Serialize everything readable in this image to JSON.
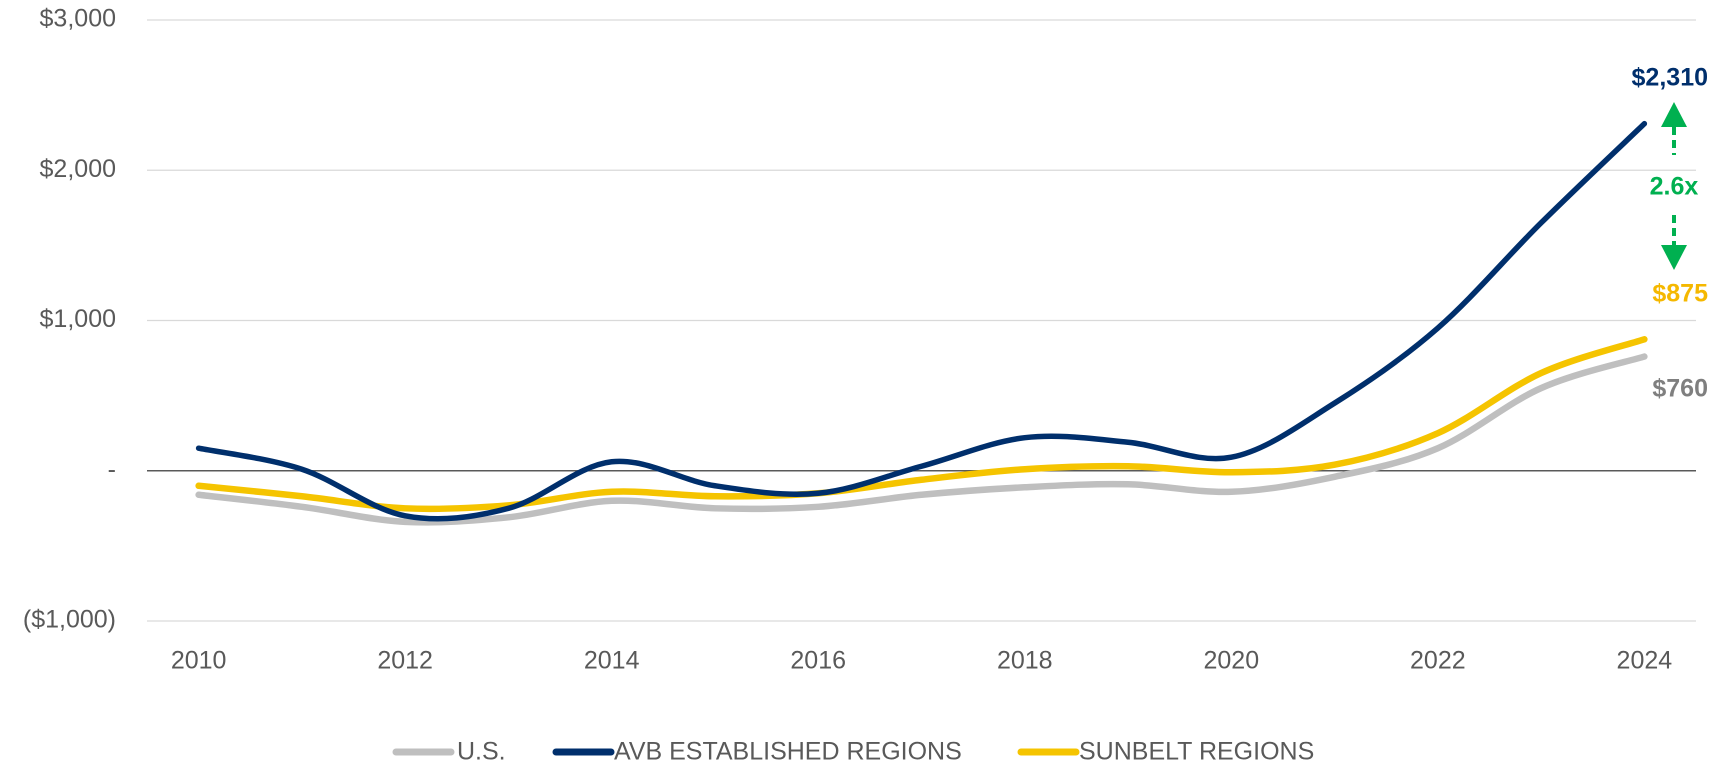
{
  "chart_data": {
    "type": "line",
    "x": [
      2010,
      2011,
      2012,
      2013,
      2014,
      2015,
      2016,
      2017,
      2018,
      2019,
      2020,
      2021,
      2022,
      2023,
      2024
    ],
    "xlim": [
      2009.5,
      2024.5
    ],
    "xticks": [
      2010,
      2012,
      2014,
      2016,
      2018,
      2020,
      2022,
      2024
    ],
    "ylim": [
      -1000,
      3000
    ],
    "yticks": [
      {
        "value": -1000,
        "label": "($1,000)"
      },
      {
        "value": 0,
        "label": "-"
      },
      {
        "value": 1000,
        "label": "$1,000"
      },
      {
        "value": 2000,
        "label": "$2,000"
      },
      {
        "value": 3000,
        "label": "$3,000"
      }
    ],
    "grid": true,
    "legend": "bottom",
    "series": [
      {
        "name": "U.S.",
        "color": "#bfbfbf",
        "values": [
          -160,
          -240,
          -340,
          -310,
          -200,
          -250,
          -240,
          -160,
          -110,
          -90,
          -140,
          -40,
          150,
          550,
          760
        ],
        "value_labels": [
          null,
          null,
          null,
          null,
          null,
          null,
          null,
          null,
          null,
          null,
          null,
          null,
          null,
          null,
          "$760"
        ],
        "label_color": "#7f7f7f"
      },
      {
        "name": "AVB ESTABLISHED REGIONS",
        "color": "#002f6c",
        "values": [
          150,
          10,
          -300,
          -250,
          60,
          -100,
          -150,
          30,
          220,
          190,
          90,
          450,
          950,
          1650,
          2310
        ],
        "value_labels": [
          null,
          null,
          null,
          null,
          null,
          null,
          null,
          null,
          null,
          null,
          null,
          null,
          null,
          null,
          "$2,310"
        ],
        "label_color": "#002f6c"
      },
      {
        "name": "SUNBELT REGIONS",
        "color": "#f5c400",
        "values": [
          -100,
          -170,
          -250,
          -230,
          -140,
          -170,
          -150,
          -60,
          10,
          30,
          -10,
          40,
          250,
          650,
          875
        ],
        "value_labels": [
          null,
          null,
          null,
          null,
          null,
          null,
          null,
          null,
          null,
          null,
          null,
          null,
          null,
          null,
          "$875"
        ],
        "label_color": "#f5b800"
      }
    ],
    "annotations": [
      {
        "text": "2.6x",
        "color": "#00b050"
      }
    ]
  }
}
